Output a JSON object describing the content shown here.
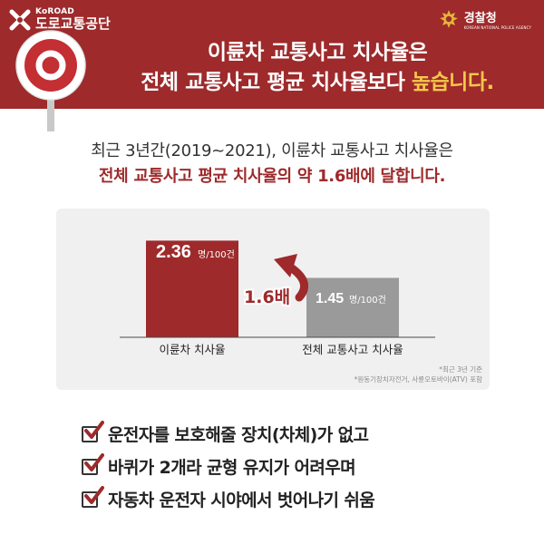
{
  "header": {
    "logo_left_en": "KoROAD",
    "logo_left_ko": "도로교통공단",
    "logo_right_ko": "경찰청",
    "logo_right_en": "KOREAN NATIONAL POLICE AGENCY",
    "headline_line1": "이륜차 교통사고 치사율은",
    "headline_line2_prefix": "전체 교통사고 평균 치사율보다 ",
    "headline_line2_highlight": "높습니다."
  },
  "intro": {
    "line1": "최근 3년간(2019~2021), 이륜차 교통사고 치사율은",
    "line2": "전체 교통사고 평균 치사율의 약 1.6배에 달합니다."
  },
  "chart_data": {
    "type": "bar",
    "categories": [
      "이륜차 치사율",
      "전체 교통사고 치사율"
    ],
    "values": [
      2.36,
      1.45
    ],
    "unit": "명/100건",
    "data_labels": [
      "2.36",
      "1.45"
    ],
    "ratio_label": "1.6배",
    "ylim": [
      0,
      2.7
    ],
    "colors": [
      "#9e2a2b",
      "#9a9a9a"
    ],
    "notes": [
      "*최근 3년 기준",
      "*원동기장치자전거, 사륜오토바이(ATV) 포함"
    ]
  },
  "checklist": [
    "운전자를 보호해줄 장치(차체)가 없고",
    "바퀴가 2개라 균형 유지가 어려우며",
    "자동차 운전자 시야에서 벗어나기 쉬움"
  ],
  "colors": {
    "brand_red": "#9e2a2b",
    "highlight_yellow": "#f5c74a",
    "bar_gray": "#9a9a9a",
    "panel_gray": "#f0f0f0"
  }
}
